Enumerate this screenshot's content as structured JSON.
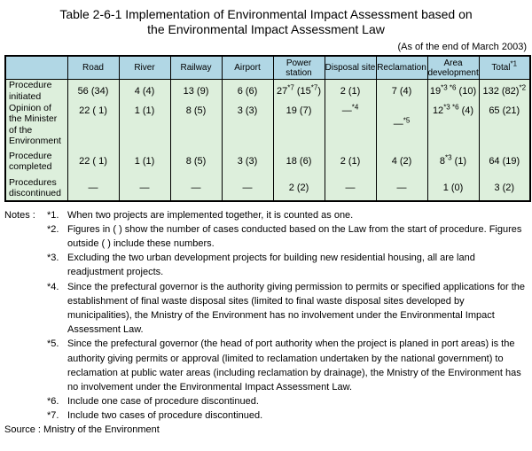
{
  "title": "Table 2-6-1  Implementation of Environmental Impact Assessment based on\nthe Environmental Impact Assessment Law",
  "as_of": "(As of the end of March 2003)",
  "colors": {
    "header_bg": "#b1d7e5",
    "body_bg": "#ddefdc",
    "border": "#000000"
  },
  "table": {
    "columns": [
      "Road",
      "River",
      "Railway",
      "Airport",
      "Power station",
      "Disposal site",
      "Reclamation",
      "Area development",
      "Total[*1]"
    ],
    "rows": [
      {
        "label": "Procedure initiated",
        "cells": [
          "56 (34)",
          "4 (4)",
          "13 (9)",
          "6 (6)",
          "27[*7] (15[*7])",
          "2 (1)",
          "7 (4)",
          "19[*3 *6] (10)",
          "132 (82)[*2]"
        ]
      },
      {
        "label": "Opinion of the Minister of the Environment",
        "cells": [
          "22 ( 1)",
          "1 (1)",
          "8 (5)",
          "3 (3)",
          "19 (7)",
          "—[*4]",
          "—[*5]",
          "12[*3 *6] (4)",
          "65 (21)"
        ]
      },
      {
        "label": "Procedure completed",
        "cells": [
          "22 ( 1)",
          "1 (1)",
          "8 (5)",
          "3 (3)",
          "18 (6)",
          "2 (1)",
          "4 (2)",
          "8[*3] (1)",
          "64 (19)"
        ]
      },
      {
        "label": "Procedures discontinued",
        "cells": [
          "—",
          "—",
          "—",
          "—",
          "2 (2)",
          "—",
          "—",
          "1 (0)",
          "3 (2)"
        ]
      }
    ]
  },
  "notes": {
    "label": "Notes :",
    "items": [
      {
        "marker": "*1.",
        "text": "When two projects are implemented together, it is counted as one."
      },
      {
        "marker": "*2.",
        "text": "Figures in ( ) show the number of cases conducted based on the Law from the start of procedure. Figures outside ( ) include these numbers."
      },
      {
        "marker": "*3.",
        "text": "Excluding the two urban development projects for building new residential housing, all are land readjustment projects."
      },
      {
        "marker": "*4.",
        "text": "Since the prefectural governor is the authority giving permission to permits or specified applications for the establishment of final waste disposal sites (limited to final waste disposal sites developed by municipalities), the Mnistry of the Environment has no involvement under the Environmental Impact Assessment Law."
      },
      {
        "marker": "*5.",
        "text": "Since the prefectural governor (the head of port authority when the project is planed in port areas) is the authority giving permits or approval (limited to reclamation undertaken by the national government) to reclamation at public water areas (including reclamation by drainage), the Mnistry of the Environment has no involvement under the Environmental Impact Assessment Law."
      },
      {
        "marker": "*6.",
        "text": "Include one case of procedure discontinued."
      },
      {
        "marker": "*7.",
        "text": "Include two cases of procedure discontinued."
      }
    ]
  },
  "source": "Source : Mnistry of the Environment"
}
